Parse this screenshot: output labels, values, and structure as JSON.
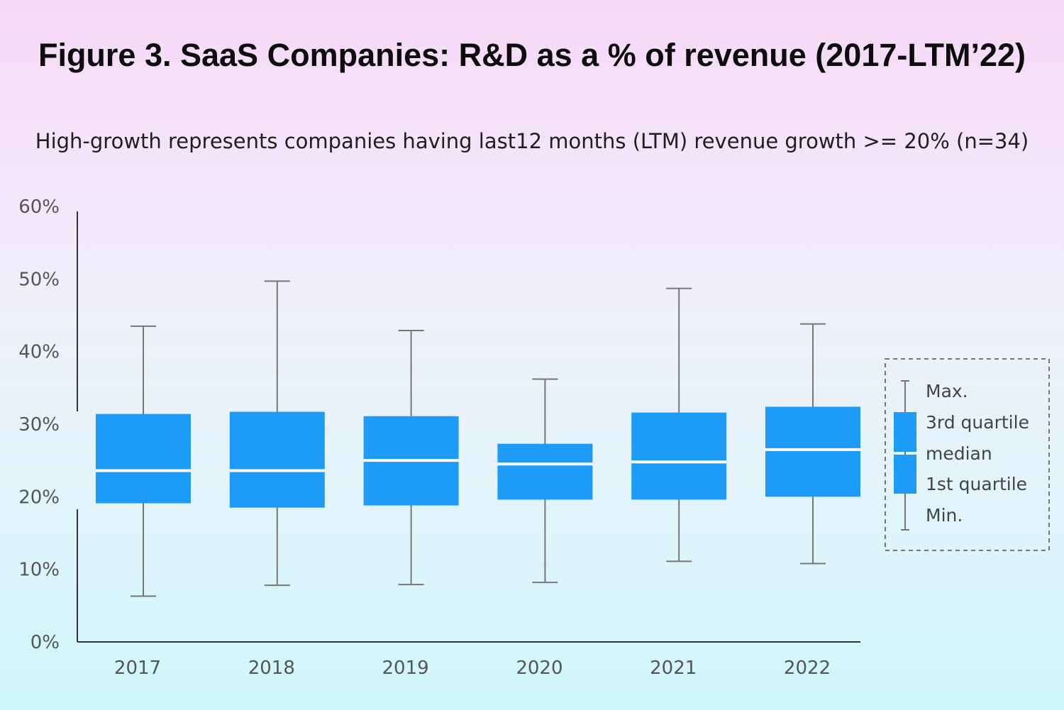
{
  "chart_data": {
    "type": "boxplot",
    "title": "Figure 3. SaaS Companies:  R&D as a % of revenue (2017-LTM’22)",
    "subtitle": "High-growth represents companies having last12 months (LTM) revenue growth >= 20% (n=34)",
    "xlabel": "",
    "ylabel": "",
    "ylim": [
      0,
      60
    ],
    "y_ticks": [
      "0%",
      "10%",
      "20%",
      "30%",
      "40%",
      "50%",
      "60%"
    ],
    "categories": [
      "2017",
      "2018",
      "2019",
      "2020",
      "2021",
      "2022"
    ],
    "series": [
      {
        "name": "Max.",
        "values": [
          43.5,
          49.7,
          42.9,
          36.2,
          48.7,
          43.8
        ]
      },
      {
        "name": "3rd quartile",
        "values": [
          31.4,
          31.7,
          31.1,
          27.3,
          31.6,
          32.4
        ]
      },
      {
        "name": "median",
        "values": [
          23.6,
          23.6,
          25.0,
          24.5,
          24.8,
          26.5
        ]
      },
      {
        "name": "1st quartile",
        "values": [
          19.1,
          18.5,
          18.8,
          19.6,
          19.6,
          20.0
        ]
      },
      {
        "name": "Min.",
        "values": [
          6.3,
          7.8,
          7.9,
          8.2,
          11.1,
          10.8
        ]
      }
    ],
    "legend": {
      "position": "right",
      "items": [
        "Max.",
        "3rd quartile",
        "median",
        "1st quartile",
        "Min."
      ]
    },
    "grid": false,
    "colors": {
      "box": "#1e9bf7",
      "whisker": "#777777"
    }
  }
}
